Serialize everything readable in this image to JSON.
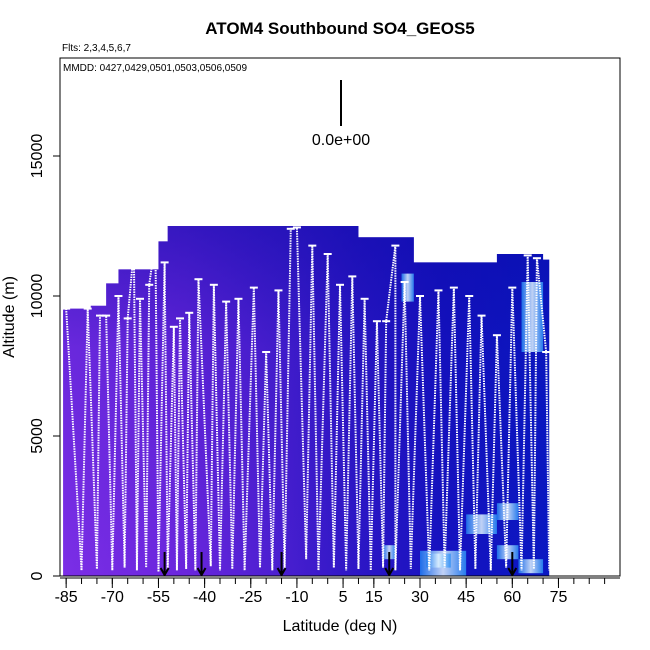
{
  "chart_data": {
    "type": "heatmap",
    "title": "ATOM4 Southbound SO4_GEOS5",
    "flights_label": "Flts: 2,3,4,5,6,7",
    "dates_label": "MMDD: 0427,0429,0501,0503,0506,0509",
    "scale_label": "0.0e+00",
    "xlabel": "Latitude (deg N)",
    "ylabel": "Altitude (m)",
    "xlim": [
      -87,
      95
    ],
    "ylim": [
      0,
      18500
    ],
    "x_ticks": [
      -85,
      -70,
      -55,
      -40,
      -25,
      -10,
      5,
      15,
      30,
      45,
      60,
      75
    ],
    "x_tick_labels": [
      "-85",
      "-70",
      "-55",
      "-40",
      "-25",
      "-10",
      "5",
      "15",
      "30",
      "45",
      "60",
      "75"
    ],
    "y_ticks": [
      0,
      5000,
      10000,
      15000
    ],
    "y_tick_labels": [
      "0",
      "5000",
      "10000",
      "15000"
    ],
    "curtain_top_profile": [
      [
        -86,
        9550
      ],
      [
        -79,
        9550
      ],
      [
        -77,
        9650
      ],
      [
        -72,
        10450
      ],
      [
        -68,
        10950
      ],
      [
        -55,
        11950
      ],
      [
        -52,
        12500
      ],
      [
        -30,
        12500
      ],
      [
        -25,
        12500
      ],
      [
        -10,
        12500
      ],
      [
        0,
        12500
      ],
      [
        5,
        12500
      ],
      [
        10,
        12100
      ],
      [
        25,
        12100
      ],
      [
        28,
        11200
      ],
      [
        45,
        11200
      ],
      [
        55,
        11500
      ],
      [
        66,
        11500
      ],
      [
        70,
        11300
      ],
      [
        72,
        10400
      ]
    ],
    "flight_track_peaks": [
      [
        -85,
        9550
      ],
      [
        -78,
        9550
      ],
      [
        -74,
        9300
      ],
      [
        -72,
        9300
      ],
      [
        -68,
        10000
      ],
      [
        -65,
        9200
      ],
      [
        -63,
        11650
      ],
      [
        -61,
        9900
      ],
      [
        -58,
        10400
      ],
      [
        -56,
        12000
      ],
      [
        -53,
        11200
      ],
      [
        -50,
        8900
      ],
      [
        -48,
        9200
      ],
      [
        -45,
        9400
      ],
      [
        -42,
        10600
      ],
      [
        -37,
        10400
      ],
      [
        -33,
        9800
      ],
      [
        -29,
        9900
      ],
      [
        -24,
        10300
      ],
      [
        -20,
        8000
      ],
      [
        -16,
        10200
      ],
      [
        -12,
        12400
      ],
      [
        -10,
        12450
      ],
      [
        -5,
        11800
      ],
      [
        0,
        11500
      ],
      [
        4,
        10400
      ],
      [
        8,
        10700
      ],
      [
        12,
        9900
      ],
      [
        16,
        9100
      ],
      [
        19,
        9100
      ],
      [
        22,
        11800
      ],
      [
        25,
        10500
      ],
      [
        30,
        10000
      ],
      [
        36,
        10200
      ],
      [
        41,
        10300
      ],
      [
        46,
        10000
      ],
      [
        50,
        9300
      ],
      [
        55,
        8600
      ],
      [
        60,
        10300
      ],
      [
        65,
        11450
      ],
      [
        68,
        11350
      ],
      [
        71,
        8000
      ]
    ],
    "flight_track_troughs": [
      [
        -80,
        200
      ],
      [
        -75,
        250
      ],
      [
        -70,
        200
      ],
      [
        -66,
        300
      ],
      [
        -62,
        200
      ],
      [
        -59,
        300
      ],
      [
        -55,
        150
      ],
      [
        -52,
        250
      ],
      [
        -49,
        200
      ],
      [
        -46,
        250
      ],
      [
        -43,
        200
      ],
      [
        -38,
        350
      ],
      [
        -35,
        200
      ],
      [
        -31,
        250
      ],
      [
        -27,
        200
      ],
      [
        -22,
        300
      ],
      [
        -18,
        200
      ],
      [
        -14,
        250
      ],
      [
        -7,
        600
      ],
      [
        -3,
        200
      ],
      [
        2,
        300
      ],
      [
        6,
        200
      ],
      [
        10,
        250
      ],
      [
        14,
        200
      ],
      [
        18,
        300
      ],
      [
        22,
        200
      ],
      [
        27,
        250
      ],
      [
        33,
        200
      ],
      [
        38,
        300
      ],
      [
        43,
        200
      ],
      [
        48,
        250
      ],
      [
        53,
        200
      ],
      [
        58,
        300
      ],
      [
        63,
        200
      ],
      [
        67,
        250
      ],
      [
        72,
        200
      ]
    ],
    "bright_patches": [
      [
        30,
        45,
        0,
        900
      ],
      [
        45,
        55,
        1500,
        2200
      ],
      [
        55,
        62,
        2000,
        2600
      ],
      [
        55,
        62,
        600,
        1100
      ],
      [
        62,
        70,
        100,
        600
      ],
      [
        32,
        40,
        300,
        800
      ],
      [
        18,
        22,
        600,
        1100
      ],
      [
        24,
        28,
        9800,
        10800
      ],
      [
        63,
        70,
        8000,
        10500
      ]
    ],
    "ground_markers": [
      -53,
      -41,
      -15,
      20,
      60
    ]
  }
}
